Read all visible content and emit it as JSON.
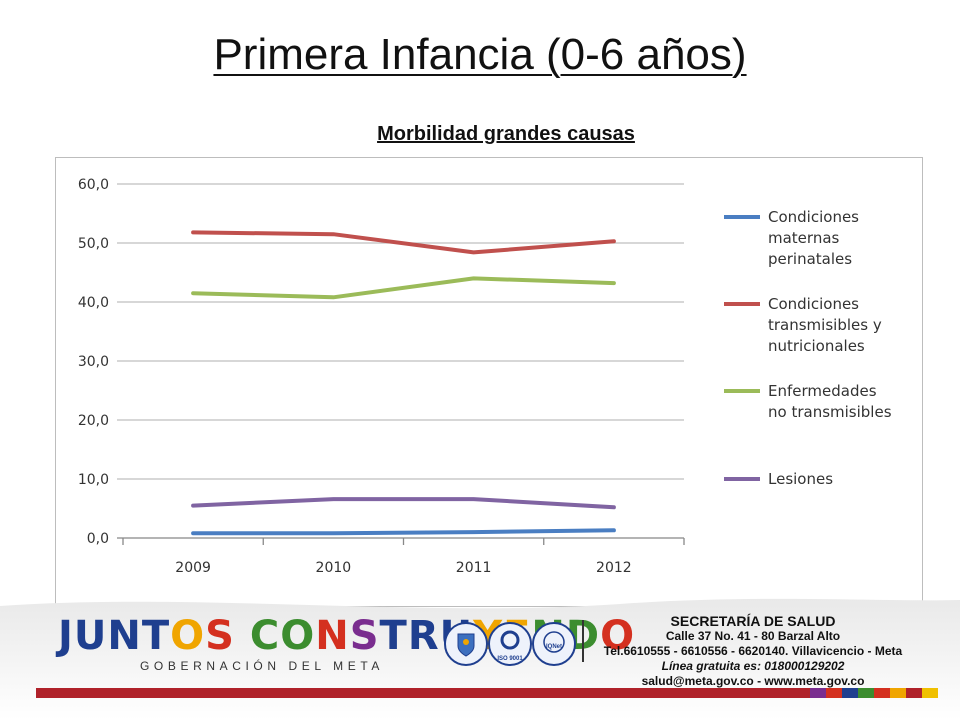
{
  "slide": {
    "title": "Primera Infancia (0-6 años)",
    "subtitle": "Morbilidad grandes causas"
  },
  "chart_data": {
    "type": "line",
    "title": "Morbilidad grandes causas",
    "xlabel": "",
    "ylabel": "",
    "ylim": [
      0,
      60
    ],
    "yticks": [
      "0,0",
      "10,0",
      "20,0",
      "30,0",
      "40,0",
      "50,0",
      "60,0"
    ],
    "categories": [
      "2009",
      "2010",
      "2011",
      "2012"
    ],
    "grid": true,
    "legend_position": "right",
    "series": [
      {
        "name": "Condiciones maternas perinatales",
        "legend_lines": [
          "Condiciones",
          "maternas",
          "perinatales"
        ],
        "color": "#4a7ec2",
        "values": [
          0.8,
          0.8,
          1.0,
          1.3
        ]
      },
      {
        "name": "Condiciones transmisibles y nutricionales",
        "legend_lines": [
          "Condiciones",
          "transmisibles y",
          "nutricionales"
        ],
        "color": "#c0504d",
        "values": [
          51.8,
          51.5,
          48.4,
          50.3
        ]
      },
      {
        "name": "Enfermedades no transmisibles",
        "legend_lines": [
          "Enfermedades",
          "no transmisibles"
        ],
        "color": "#9bbb59",
        "values": [
          41.5,
          40.8,
          44.0,
          43.2
        ]
      },
      {
        "name": "Lesiones",
        "legend_lines": [
          "Lesiones"
        ],
        "color": "#8064a2",
        "values": [
          5.5,
          6.6,
          6.6,
          5.2
        ]
      }
    ]
  },
  "footer": {
    "logo_words": [
      "JUNTOS",
      "CONSTRUYENDO"
    ],
    "logo_subtitle": "GOBERNACIÓN DEL META",
    "seals": [
      "ISO 9001",
      "IQNet"
    ],
    "contact_title": "SECRETARÍA DE SALUD",
    "contact_lines": [
      "Calle 37 No. 41 - 80 Barzal Alto",
      "Tel.6610555 - 6610556 - 6620140. Villavicencio - Meta",
      "Línea gratuita es: 018000129202",
      "salud@meta.gov.co - www.meta.gov.co"
    ],
    "bar_colors": [
      "#7a2d8f",
      "#d4301f",
      "#1f3f8f",
      "#3c8d2f",
      "#d4301f",
      "#f0a500",
      "#b0222a",
      "#f0c000"
    ]
  }
}
